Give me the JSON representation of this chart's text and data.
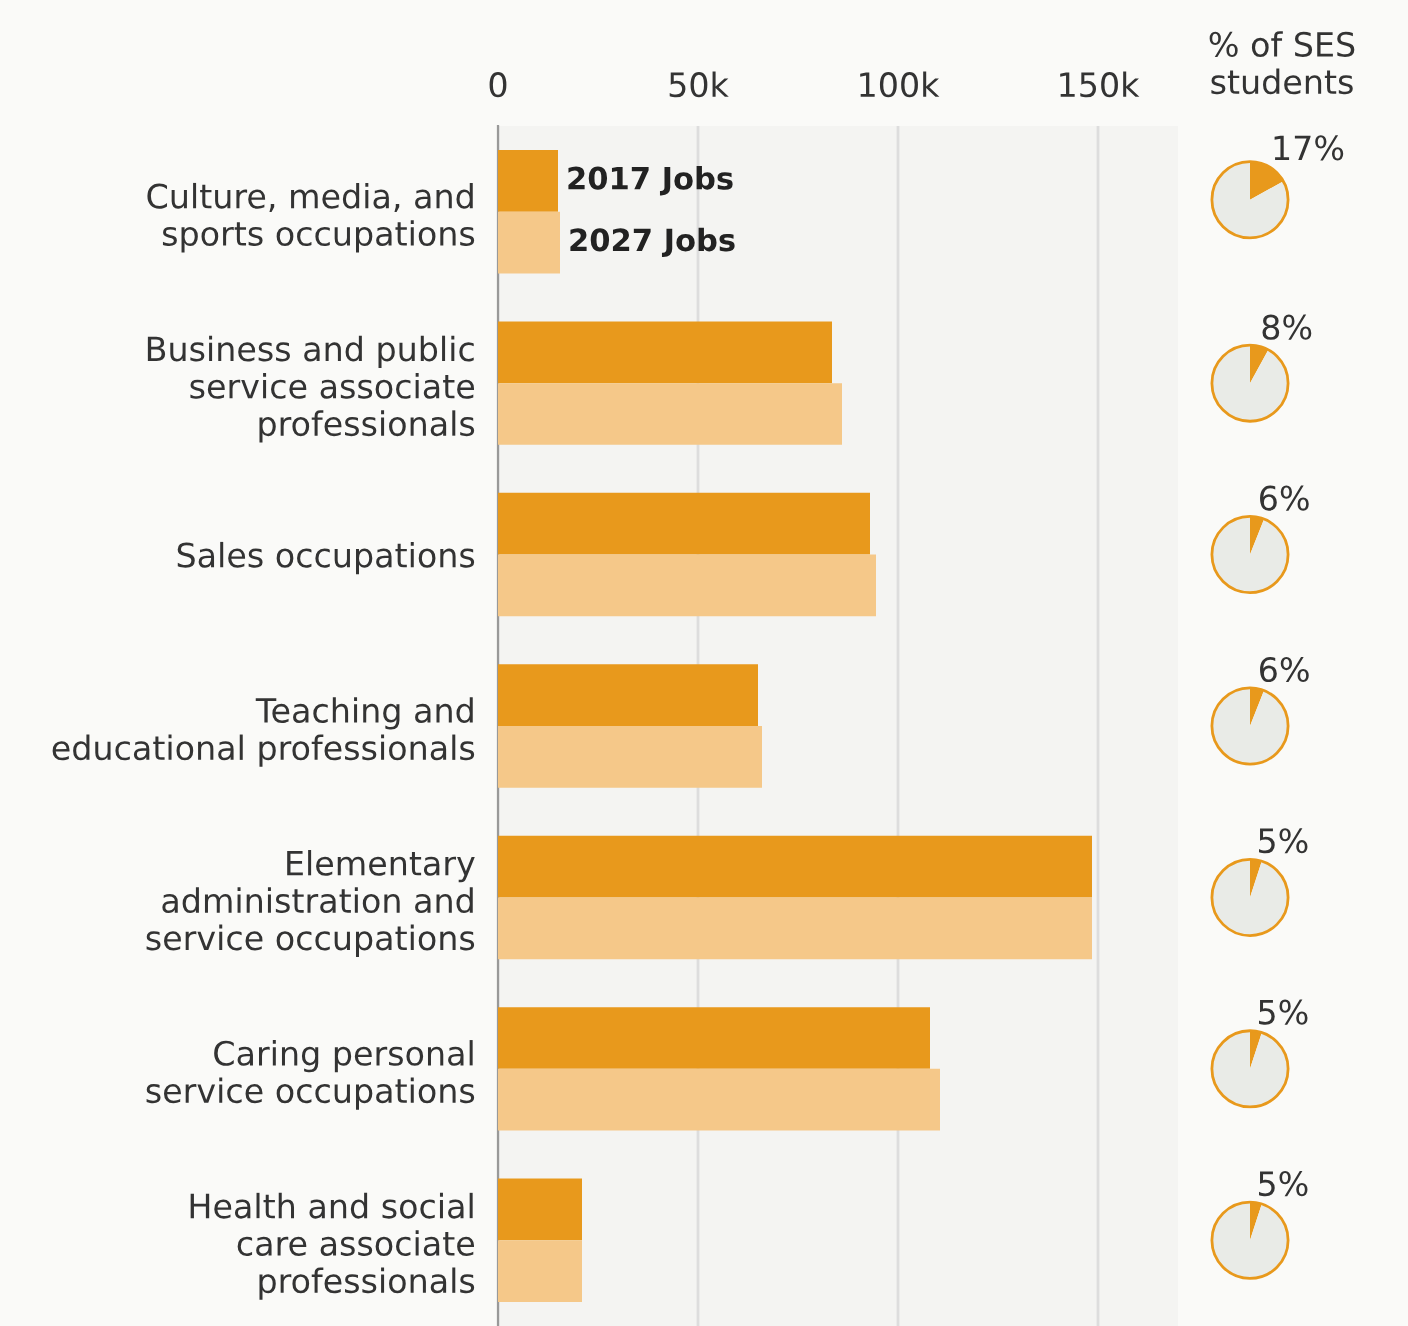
{
  "chart_data": [
    {
      "type": "bar",
      "orientation": "horizontal",
      "categories": [
        "Culture, media, and\nsports occupations",
        "Business and public\nservice associate\nprofessionals",
        "Sales occupations",
        "Teaching and\neducational professionals",
        "Elementary\nadministration and\nservice occupations",
        "Caring personal\nservice occupations",
        "Health and social\ncare associate\nprofessionals"
      ],
      "series": [
        {
          "name": "2017 Jobs",
          "color": "#e8991c",
          "values": [
            15000,
            83500,
            93000,
            65000,
            148500,
            108000,
            21000
          ]
        },
        {
          "name": "2027 Jobs",
          "color": "#f5c889",
          "values": [
            15500,
            86000,
            94500,
            66000,
            148500,
            110500,
            21000
          ]
        }
      ],
      "xlim": [
        0,
        170000
      ],
      "xticks": [
        {
          "value": 0,
          "label": "0"
        },
        {
          "value": 50000,
          "label": "50k"
        },
        {
          "value": 100000,
          "label": "100k"
        },
        {
          "value": 150000,
          "label": "150k"
        }
      ],
      "grid": "x",
      "legend": false
    },
    {
      "type": "pie",
      "title": "% of SES students",
      "values": [
        17,
        83
      ],
      "colors": [
        "#e8991c",
        "#e9ebe7"
      ],
      "value_labels": [
        "17%",
        null
      ]
    },
    {
      "type": "pie",
      "values": [
        8,
        92
      ],
      "colors": [
        "#e8991c",
        "#e9ebe7"
      ],
      "value_labels": [
        "8%",
        null
      ]
    },
    {
      "type": "pie",
      "values": [
        6,
        94
      ],
      "colors": [
        "#e8991c",
        "#e9ebe7"
      ],
      "value_labels": [
        "6%",
        null
      ]
    },
    {
      "type": "pie",
      "values": [
        6,
        94
      ],
      "colors": [
        "#e8991c",
        "#e9ebe7"
      ],
      "value_labels": [
        "6%",
        null
      ]
    },
    {
      "type": "pie",
      "values": [
        5,
        95
      ],
      "colors": [
        "#e8991c",
        "#e9ebe7"
      ],
      "value_labels": [
        "5%",
        null
      ]
    },
    {
      "type": "pie",
      "values": [
        5,
        95
      ],
      "colors": [
        "#e8991c",
        "#e9ebe7"
      ],
      "value_labels": [
        "5%",
        null
      ]
    },
    {
      "type": "pie",
      "values": [
        5,
        95
      ],
      "colors": [
        "#e8991c",
        "#e9ebe7"
      ],
      "value_labels": [
        "5%",
        null
      ]
    }
  ]
}
